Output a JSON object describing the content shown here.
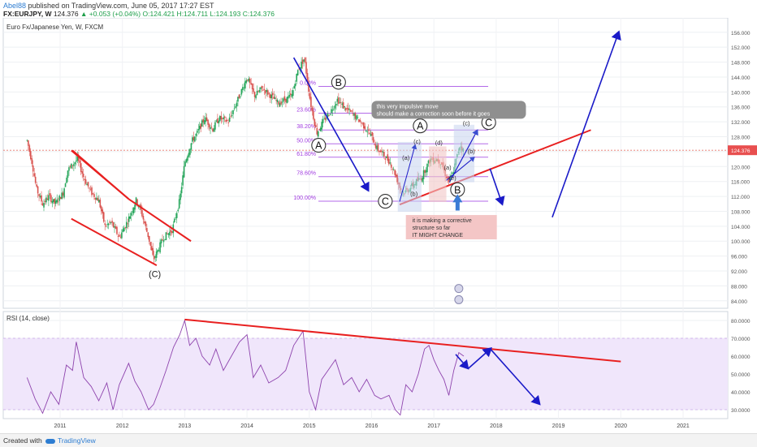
{
  "header": {
    "author": "Abel88",
    "published": " published on TradingView.com, June 05, 2017 17:27 EST",
    "symbol": "FX:EURJPY, W",
    "last": "124.376",
    "change": "+0.053 (+0.04%)",
    "ohlc": "O:124.421 H:124.711 L:124.193 C:124.376"
  },
  "chart_data": [
    {
      "type": "candlestick",
      "title": "Euro Fx/Japanese Yen, W, FXCM",
      "y_ticks": [
        "156.000",
        "152.000",
        "148.000",
        "144.000",
        "140.000",
        "136.000",
        "132.000",
        "128.000",
        "124.000",
        "120.000",
        "116.000",
        "112.000",
        "108.000",
        "104.000",
        "100.000",
        "96.000",
        "92.000",
        "88.000",
        "84.000"
      ],
      "ylim": [
        82,
        159
      ],
      "last_price": 124.376,
      "last_price_label": "124.376",
      "price_path": [
        [
          2010.47,
          127
        ],
        [
          2010.55,
          121
        ],
        [
          2010.62,
          114
        ],
        [
          2010.72,
          110
        ],
        [
          2010.82,
          112
        ],
        [
          2010.92,
          110
        ],
        [
          2011.05,
          113
        ],
        [
          2011.12,
          119
        ],
        [
          2011.28,
          122
        ],
        [
          2011.38,
          117
        ],
        [
          2011.5,
          113
        ],
        [
          2011.62,
          111
        ],
        [
          2011.72,
          104
        ],
        [
          2011.82,
          105
        ],
        [
          2011.95,
          101
        ],
        [
          2012.1,
          106
        ],
        [
          2012.22,
          111
        ],
        [
          2012.3,
          108
        ],
        [
          2012.42,
          101
        ],
        [
          2012.5,
          95
        ],
        [
          2012.58,
          98
        ],
        [
          2012.66,
          101
        ],
        [
          2012.8,
          103
        ],
        [
          2012.92,
          111
        ],
        [
          2013.0,
          121
        ],
        [
          2013.12,
          127
        ],
        [
          2013.2,
          129
        ],
        [
          2013.32,
          133
        ],
        [
          2013.45,
          130
        ],
        [
          2013.55,
          133
        ],
        [
          2013.7,
          132
        ],
        [
          2013.88,
          139
        ],
        [
          2014.0,
          144
        ],
        [
          2014.12,
          139
        ],
        [
          2014.25,
          141
        ],
        [
          2014.38,
          139
        ],
        [
          2014.5,
          137
        ],
        [
          2014.62,
          138
        ],
        [
          2014.72,
          139
        ],
        [
          2014.82,
          146
        ],
        [
          2014.92,
          149
        ],
        [
          2015.02,
          137
        ],
        [
          2015.12,
          129
        ],
        [
          2015.22,
          132
        ],
        [
          2015.35,
          135
        ],
        [
          2015.45,
          138
        ],
        [
          2015.55,
          136
        ],
        [
          2015.7,
          134
        ],
        [
          2015.82,
          132
        ],
        [
          2015.92,
          130
        ],
        [
          2016.0,
          128
        ],
        [
          2016.08,
          125
        ],
        [
          2016.2,
          123
        ],
        [
          2016.3,
          121
        ],
        [
          2016.38,
          118
        ],
        [
          2016.46,
          114
        ],
        [
          2016.52,
          113
        ],
        [
          2016.6,
          114
        ],
        [
          2016.72,
          116
        ],
        [
          2016.8,
          117
        ],
        [
          2016.88,
          120
        ],
        [
          2016.95,
          122
        ],
        [
          2017.05,
          122
        ],
        [
          2017.12,
          121
        ],
        [
          2017.18,
          118
        ],
        [
          2017.24,
          116
        ],
        [
          2017.3,
          118
        ],
        [
          2017.36,
          122
        ],
        [
          2017.42,
          126
        ],
        [
          2017.48,
          124
        ]
      ],
      "fibonacci": [
        {
          "label": "0.00%",
          "price": 141.5
        },
        {
          "label": "23.60%",
          "price": 134.3
        },
        {
          "label": "38.20%",
          "price": 129.8
        },
        {
          "label": "50.00%",
          "price": 126.1
        },
        {
          "label": "61.80%",
          "price": 122.5
        },
        {
          "label": "78.60%",
          "price": 117.3
        },
        {
          "label": "100.00%",
          "price": 110.7
        }
      ],
      "wave_labels": {
        "big": [
          "B",
          "A",
          "A",
          "C",
          "B",
          "C"
        ],
        "small": [
          "(C)"
        ],
        "sub": [
          "(a)",
          "(c)",
          "(b)",
          "(d)",
          "(a)",
          "(e)",
          "(c)",
          "(b)"
        ]
      },
      "annotations": {
        "note1": [
          "this very impulsive move",
          "should make a correction soon before it goes"
        ],
        "note2": [
          "it is making a corrective",
          "structure so far",
          "IT MIGHT CHANGE"
        ]
      }
    },
    {
      "type": "line",
      "title": "RSI (14, close)",
      "y_ticks": [
        "80.0000",
        "70.0000",
        "60.0000",
        "50.0000",
        "40.0000",
        "30.0000"
      ],
      "ylim": [
        25,
        85
      ],
      "band": [
        30,
        70
      ],
      "x_ticks": [
        "2011",
        "2012",
        "2013",
        "2014",
        "2015",
        "2016",
        "2017",
        "2018",
        "2019",
        "2020",
        "2021"
      ],
      "values": [
        [
          2010.47,
          48
        ],
        [
          2010.6,
          36
        ],
        [
          2010.72,
          28
        ],
        [
          2010.85,
          40
        ],
        [
          2010.98,
          33
        ],
        [
          2011.1,
          55
        ],
        [
          2011.2,
          52
        ],
        [
          2011.26,
          68
        ],
        [
          2011.38,
          48
        ],
        [
          2011.5,
          43
        ],
        [
          2011.62,
          35
        ],
        [
          2011.75,
          45
        ],
        [
          2011.85,
          30
        ],
        [
          2011.95,
          44
        ],
        [
          2012.1,
          56
        ],
        [
          2012.2,
          46
        ],
        [
          2012.3,
          40
        ],
        [
          2012.42,
          30
        ],
        [
          2012.5,
          33
        ],
        [
          2012.6,
          42
        ],
        [
          2012.7,
          52
        ],
        [
          2012.82,
          65
        ],
        [
          2012.92,
          72
        ],
        [
          2013.0,
          80
        ],
        [
          2013.08,
          66
        ],
        [
          2013.18,
          70
        ],
        [
          2013.28,
          60
        ],
        [
          2013.4,
          55
        ],
        [
          2013.5,
          64
        ],
        [
          2013.62,
          52
        ],
        [
          2013.75,
          60
        ],
        [
          2013.88,
          68
        ],
        [
          2014.0,
          72
        ],
        [
          2014.1,
          48
        ],
        [
          2014.22,
          55
        ],
        [
          2014.35,
          45
        ],
        [
          2014.5,
          48
        ],
        [
          2014.62,
          52
        ],
        [
          2014.75,
          66
        ],
        [
          2014.9,
          74
        ],
        [
          2015.0,
          40
        ],
        [
          2015.1,
          30
        ],
        [
          2015.2,
          47
        ],
        [
          2015.3,
          52
        ],
        [
          2015.42,
          58
        ],
        [
          2015.55,
          44
        ],
        [
          2015.68,
          48
        ],
        [
          2015.8,
          40
        ],
        [
          2015.92,
          47
        ],
        [
          2016.05,
          38
        ],
        [
          2016.15,
          36
        ],
        [
          2016.28,
          38
        ],
        [
          2016.38,
          30
        ],
        [
          2016.46,
          27
        ],
        [
          2016.55,
          44
        ],
        [
          2016.65,
          40
        ],
        [
          2016.75,
          50
        ],
        [
          2016.85,
          64
        ],
        [
          2016.92,
          66
        ],
        [
          2017.0,
          58
        ],
        [
          2017.08,
          52
        ],
        [
          2017.16,
          47
        ],
        [
          2017.24,
          38
        ],
        [
          2017.32,
          52
        ],
        [
          2017.4,
          62
        ],
        [
          2017.48,
          60
        ]
      ]
    }
  ]
}
